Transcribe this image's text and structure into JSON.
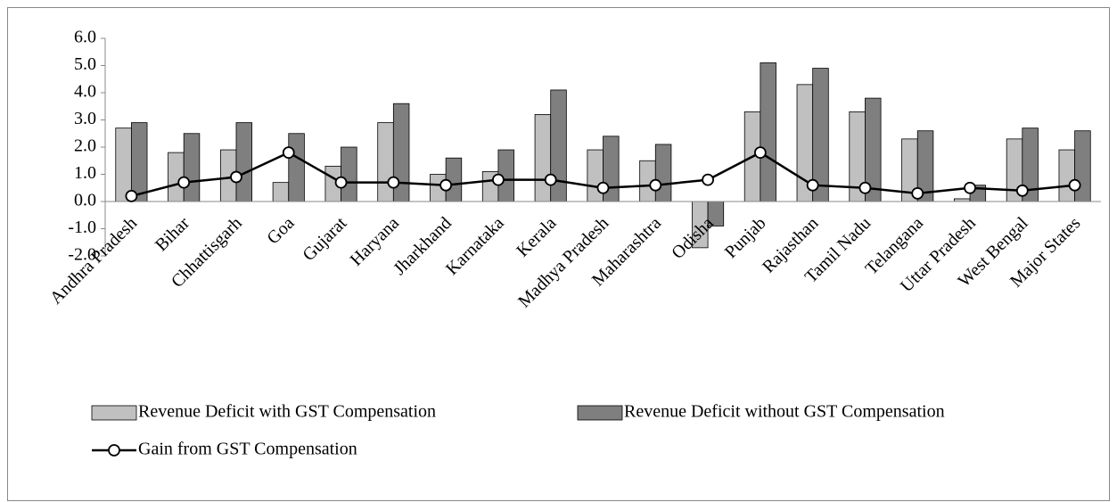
{
  "chart_data": {
    "type": "bar",
    "categories": [
      "Andhra Pradesh",
      "Bihar",
      "Chhattisgarh",
      "Goa",
      "Gujarat",
      "Haryana",
      "Jharkhand",
      "Karnataka",
      "Kerala",
      "Madhya Pradesh",
      "Maharashtra",
      "Odisha",
      "Punjab",
      "Rajasthan",
      "Tamil Nadu",
      "Telangana",
      "Uttar Pradesh",
      "West Bengal",
      "Major States"
    ],
    "series": [
      {
        "name": "Revenue Deficit with GST Compensation",
        "color": "#c0c0c0",
        "type": "bar",
        "values": [
          2.7,
          1.8,
          1.9,
          0.7,
          1.3,
          2.9,
          1.0,
          1.1,
          3.2,
          1.9,
          1.5,
          -1.7,
          3.3,
          4.3,
          3.3,
          2.3,
          0.1,
          2.3,
          1.9
        ]
      },
      {
        "name": "Revenue Deficit without GST Compensation",
        "color": "#7f7f7f",
        "type": "bar",
        "values": [
          2.9,
          2.5,
          2.9,
          2.5,
          2.0,
          3.6,
          1.6,
          1.9,
          4.1,
          2.4,
          2.1,
          -0.9,
          5.1,
          4.9,
          3.8,
          2.6,
          0.6,
          2.7,
          2.6
        ]
      },
      {
        "name": "Gain from GST Compensation",
        "color": "#000000",
        "type": "line",
        "values": [
          0.2,
          0.7,
          0.9,
          1.8,
          0.7,
          0.7,
          0.6,
          0.8,
          0.8,
          0.5,
          0.6,
          0.8,
          1.8,
          0.6,
          0.5,
          0.3,
          0.5,
          0.4,
          0.6
        ]
      }
    ],
    "ylim": [
      -2,
      6
    ],
    "yticks": [
      {
        "value": -2,
        "label": "-2.0"
      },
      {
        "value": -1,
        "label": "-1.0"
      },
      {
        "value": 0,
        "label": "0.0"
      },
      {
        "value": 1,
        "label": "1.0"
      },
      {
        "value": 2,
        "label": "2.0"
      },
      {
        "value": 3,
        "label": "3.0"
      },
      {
        "value": 4,
        "label": "4.0"
      },
      {
        "value": 5,
        "label": "5.0"
      },
      {
        "value": 6,
        "label": "6.0"
      }
    ],
    "grid": false,
    "legend": "bottom"
  }
}
